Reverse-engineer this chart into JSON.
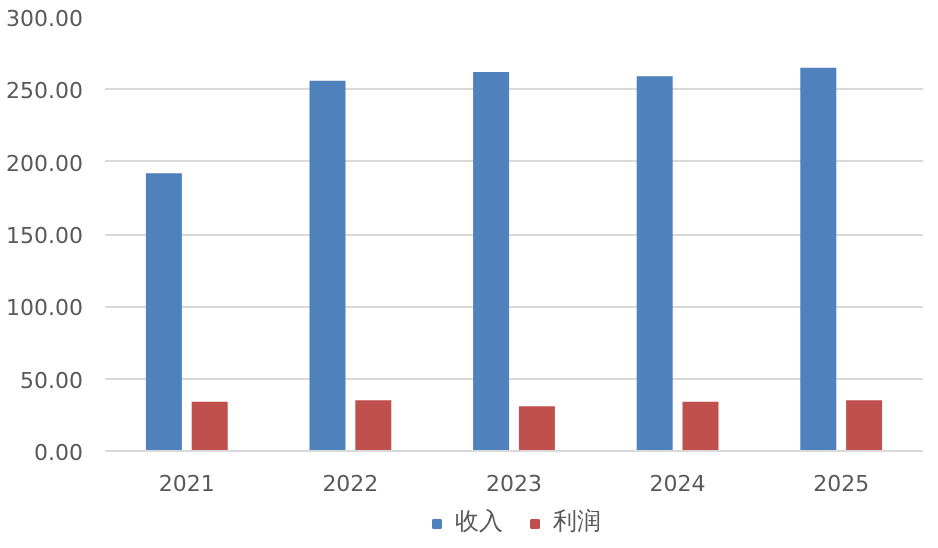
{
  "chart_data": {
    "type": "bar",
    "categories": [
      "2021",
      "2022",
      "2023",
      "2024",
      "2025"
    ],
    "series": [
      {
        "name": "收入",
        "color": "#4f81bd",
        "values": [
          192,
          256,
          262,
          259,
          265
        ]
      },
      {
        "name": "利润",
        "color": "#c0504d",
        "values": [
          34,
          35,
          31,
          34,
          35
        ]
      }
    ],
    "ylim": [
      0,
      300
    ],
    "yticks": [
      {
        "value": 0,
        "label": "0.00"
      },
      {
        "value": 50,
        "label": "50.00"
      },
      {
        "value": 100,
        "label": "100.00"
      },
      {
        "value": 150,
        "label": "150.00"
      },
      {
        "value": 200,
        "label": "200.00"
      },
      {
        "value": 250,
        "label": "250.00"
      },
      {
        "value": 300,
        "label": "300.00"
      }
    ],
    "grid": "y",
    "legend": "bottom"
  }
}
